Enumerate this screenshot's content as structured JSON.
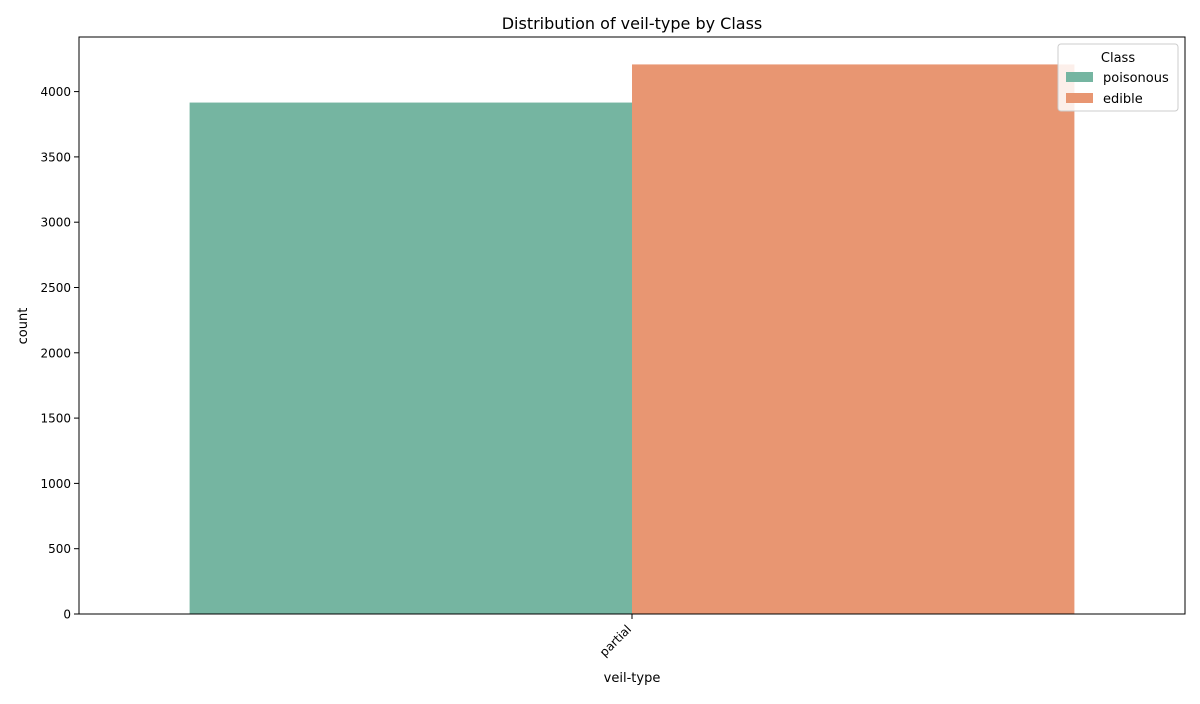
{
  "chart_data": {
    "type": "bar",
    "title": "Distribution of veil-type by Class",
    "xlabel": "veil-type",
    "ylabel": "count",
    "categories": [
      "partial"
    ],
    "series": [
      {
        "name": "poisonous",
        "values": [
          3916
        ],
        "color": "#75b5a1"
      },
      {
        "name": "edible",
        "values": [
          4208
        ],
        "color": "#e89672"
      }
    ],
    "ylim": [
      0,
      4418
    ],
    "yticks": [
      0,
      500,
      1000,
      1500,
      2000,
      2500,
      3000,
      3500,
      4000
    ],
    "grid": false,
    "legend": {
      "title": "Class",
      "position": "top-right"
    }
  }
}
